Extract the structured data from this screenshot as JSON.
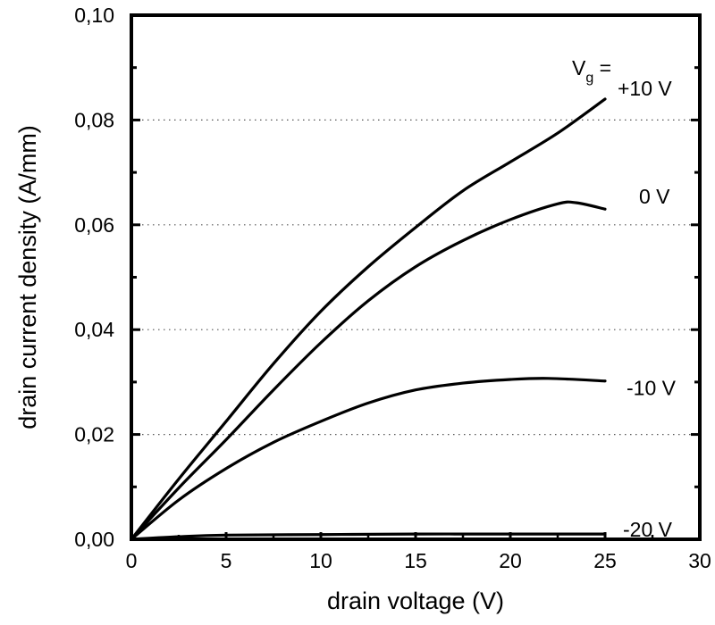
{
  "chart_data": {
    "type": "line",
    "title": "",
    "xlabel": "drain voltage (V)",
    "ylabel": "drain current density (A/mm)",
    "xlim": [
      0,
      30
    ],
    "ylim": [
      0,
      0.1
    ],
    "x_ticks": [
      0,
      5,
      10,
      15,
      20,
      25,
      30
    ],
    "x_tick_labels": [
      "0",
      "5",
      "10",
      "15",
      "20",
      "25",
      "30"
    ],
    "y_ticks": [
      0,
      0.02,
      0.04,
      0.06,
      0.08,
      0.1
    ],
    "y_tick_labels": [
      "0,00",
      "0,02",
      "0,04",
      "0,06",
      "0,08",
      "0,10"
    ],
    "grid": {
      "y_major": "dotted",
      "x": false
    },
    "legend": {
      "title_main": "V",
      "title_sub": "g",
      "title_suffix": " =",
      "placement": "top-right"
    },
    "series": [
      {
        "name": "+10 V",
        "x": [
          0,
          2.5,
          5,
          7.5,
          10,
          12.5,
          15,
          17.5,
          20,
          22.5,
          25
        ],
        "y": [
          0,
          0.0115,
          0.0225,
          0.0335,
          0.0435,
          0.052,
          0.0595,
          0.0665,
          0.072,
          0.0775,
          0.084
        ]
      },
      {
        "name": "0 V",
        "x": [
          0,
          2.5,
          5,
          7.5,
          10,
          12.5,
          15,
          17.5,
          20,
          22.5,
          23.5,
          25
        ],
        "y": [
          0,
          0.0098,
          0.019,
          0.0285,
          0.0375,
          0.0455,
          0.052,
          0.057,
          0.061,
          0.064,
          0.0642,
          0.063
        ]
      },
      {
        "name": "-10 V",
        "x": [
          0,
          2.5,
          5,
          7.5,
          10,
          12.5,
          15,
          17.5,
          20,
          22,
          25
        ],
        "y": [
          0,
          0.0075,
          0.0135,
          0.0185,
          0.0225,
          0.026,
          0.0285,
          0.0298,
          0.0305,
          0.0307,
          0.0302
        ]
      },
      {
        "name": "-20 V",
        "x": [
          0,
          2.5,
          5,
          10,
          15,
          20,
          25
        ],
        "y": [
          0,
          0.0005,
          0.0008,
          0.0009,
          0.001,
          0.001,
          0.001
        ]
      }
    ],
    "series_label_values": [
      "+10 V",
      "0 V",
      "-10 V",
      "-20 V"
    ]
  }
}
